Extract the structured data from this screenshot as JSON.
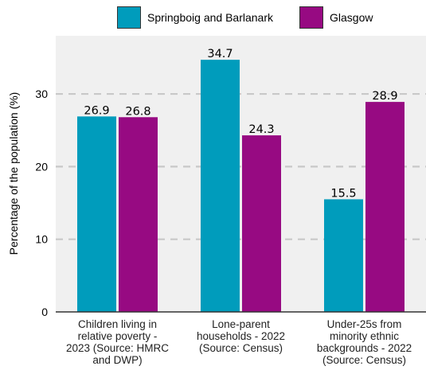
{
  "chart_data": {
    "type": "bar",
    "title": "",
    "xlabel": "",
    "ylabel": "Percentage of the population (%)",
    "ylim": [
      0,
      38
    ],
    "yticks": [
      0,
      10,
      20,
      30
    ],
    "grid": true,
    "legend_position": "top-center",
    "categories": [
      [
        "Children living in",
        "relative poverty -",
        "2023 (Source: HMRC",
        "and DWP)"
      ],
      [
        "Lone-parent",
        "households - 2022",
        "(Source: Census)"
      ],
      [
        "Under-25s from",
        "minority ethnic",
        "backgrounds - 2022",
        "(Source: Census)"
      ]
    ],
    "series": [
      {
        "name": "Springboig and Barlanark",
        "color": "#009cbc",
        "values": [
          26.9,
          34.7,
          15.5
        ],
        "labels": [
          "26.9",
          "34.7",
          "15.5"
        ]
      },
      {
        "name": "Glasgow",
        "color": "#970a82",
        "values": [
          26.8,
          24.3,
          28.9
        ],
        "labels": [
          "26.8",
          "24.3",
          "28.9"
        ]
      }
    ]
  }
}
